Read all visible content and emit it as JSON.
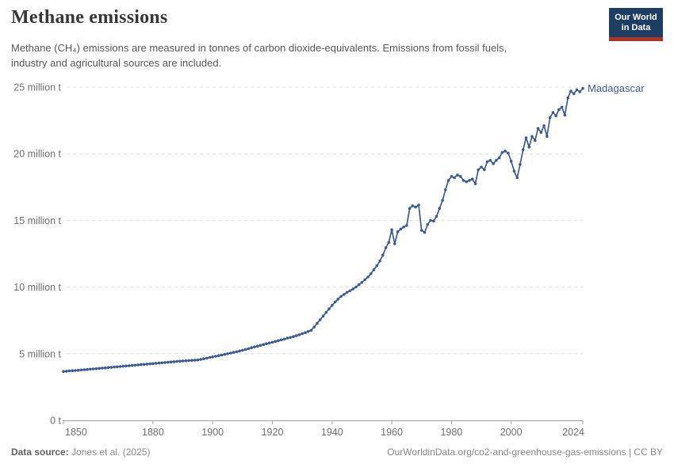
{
  "header": {
    "title": "Methane emissions",
    "subtitle": "Methane (CH₄) emissions are measured in tonnes of carbon dioxide-equivalents. Emissions from fossil fuels, industry and agricultural sources are included."
  },
  "logo": {
    "line1": "Our World",
    "line2": "in Data",
    "bg_color": "#1d3d63",
    "accent_color": "#a9342c"
  },
  "footer": {
    "source_label": "Data source:",
    "source_value": "Jones et al. (2025)",
    "link": "OurWorldinData.org/co2-and-greenhouse-gas-emissions | CC BY"
  },
  "colors": {
    "series_blue": "#3d5a91",
    "grid": "#dcdcdc",
    "axis": "#a0a0a0",
    "axis_text": "#6e6e6e"
  },
  "chart_data": {
    "type": "line",
    "title": "Methane emissions",
    "unit": "million t",
    "entity_label": "Madagascar",
    "x": {
      "start": 1850,
      "end": 2024,
      "step": 1
    },
    "xticks": [
      1850,
      1880,
      1900,
      1920,
      1940,
      1960,
      1980,
      2000,
      2024
    ],
    "ylim": [
      0,
      25
    ],
    "yticks": [
      {
        "value": 0,
        "label": "0 t"
      },
      {
        "value": 5,
        "label": "5 million t"
      },
      {
        "value": 10,
        "label": "10 million t"
      },
      {
        "value": 15,
        "label": "15 million t"
      },
      {
        "value": 20,
        "label": "20 million t"
      },
      {
        "value": 25,
        "label": "25 million t"
      }
    ],
    "grid": "dashed-horizontal",
    "legend": "inline-end-label",
    "series": [
      {
        "name": "Madagascar",
        "color": "#3d5a91",
        "values": [
          3.67,
          3.69,
          3.71,
          3.73,
          3.74,
          3.76,
          3.78,
          3.8,
          3.82,
          3.84,
          3.86,
          3.88,
          3.9,
          3.92,
          3.94,
          3.96,
          3.98,
          4.0,
          4.02,
          4.04,
          4.06,
          4.08,
          4.1,
          4.12,
          4.14,
          4.16,
          4.18,
          4.2,
          4.22,
          4.24,
          4.26,
          4.28,
          4.3,
          4.32,
          4.34,
          4.36,
          4.38,
          4.4,
          4.42,
          4.44,
          4.46,
          4.47,
          4.49,
          4.5,
          4.52,
          4.53,
          4.58,
          4.62,
          4.67,
          4.72,
          4.76,
          4.81,
          4.86,
          4.9,
          4.95,
          5.0,
          5.05,
          5.1,
          5.14,
          5.2,
          5.26,
          5.32,
          5.38,
          5.45,
          5.51,
          5.57,
          5.63,
          5.69,
          5.75,
          5.81,
          5.86,
          5.92,
          5.98,
          6.04,
          6.1,
          6.17,
          6.22,
          6.28,
          6.35,
          6.42,
          6.5,
          6.58,
          6.67,
          6.76,
          7.0,
          7.28,
          7.55,
          7.82,
          8.1,
          8.36,
          8.62,
          8.88,
          9.1,
          9.3,
          9.45,
          9.6,
          9.72,
          9.85,
          10.0,
          10.18,
          10.35,
          10.55,
          10.75,
          11.0,
          11.3,
          11.6,
          11.95,
          12.4,
          12.95,
          13.35,
          14.3,
          13.25,
          14.15,
          14.35,
          14.5,
          14.62,
          15.9,
          16.1,
          16.0,
          16.15,
          14.25,
          14.1,
          14.7,
          15.0,
          14.95,
          15.3,
          15.9,
          16.5,
          17.3,
          18.0,
          18.3,
          18.2,
          18.4,
          18.3,
          18.0,
          17.9,
          18.0,
          18.1,
          17.75,
          18.8,
          19.0,
          18.8,
          19.4,
          19.5,
          19.25,
          19.5,
          19.7,
          20.1,
          20.2,
          20.05,
          19.45,
          18.7,
          18.2,
          19.2,
          20.3,
          21.2,
          20.5,
          21.3,
          21.0,
          21.9,
          21.6,
          22.1,
          21.3,
          22.7,
          23.1,
          22.85,
          23.3,
          23.5,
          22.9,
          24.2,
          24.7,
          24.5,
          24.8,
          24.65,
          24.9
        ]
      }
    ]
  }
}
